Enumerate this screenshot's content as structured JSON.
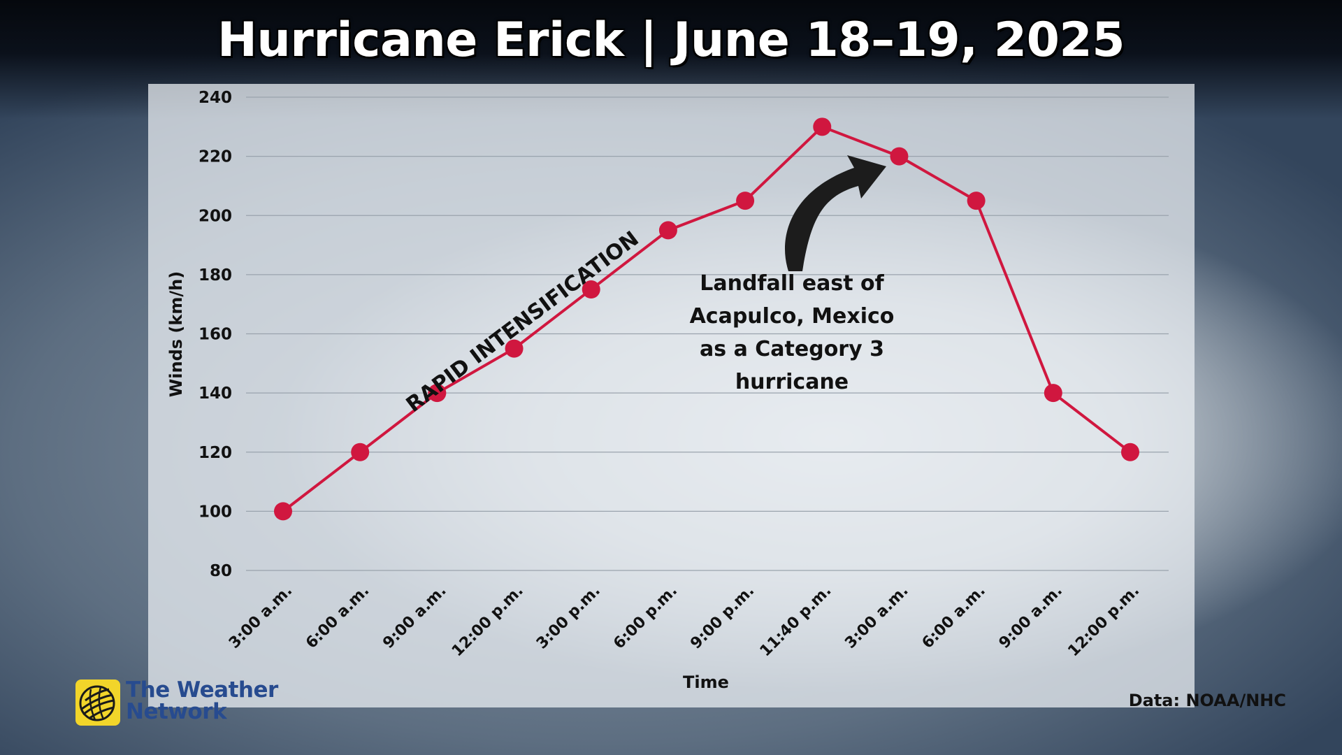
{
  "title": "Hurricane Erick | June 18–19, 2025",
  "colors": {
    "line": "#d0173f",
    "text": "#111111",
    "logo_yellow": "#f2d52a",
    "logo_blue": "#274b8f"
  },
  "annotation": "Landfall east of Acapulco, Mexico as a Category 3 hurricane",
  "annotation_lines": [
    "Landfall east of",
    "Acapulco, Mexico",
    "as a Category 3",
    "hurricane"
  ],
  "rapid_label": "RAPID INTENSIFICATION",
  "source": "Data: NOAA/NHC",
  "logo": {
    "line1": "The Weather",
    "line2": "Network",
    "icon": "globe-icon"
  },
  "chart_data": {
    "type": "line",
    "xlabel": "Time",
    "ylabel": "Winds (km/h)",
    "ylim": [
      80,
      240
    ],
    "yticks": [
      80,
      100,
      120,
      140,
      160,
      180,
      200,
      220,
      240
    ],
    "grid": true,
    "categories": [
      "3:00 a.m.",
      "6:00 a.m.",
      "9:00 a.m.",
      "12:00 p.m.",
      "3:00 p.m.",
      "6:00 p.m.",
      "9:00 p.m.",
      "11:40 p.m.",
      "3:00 a.m.",
      "6:00 a.m.",
      "9:00 a.m.",
      "12:00 p.m."
    ],
    "series": [
      {
        "values": [
          100,
          120,
          140,
          155,
          175,
          195,
          205,
          230,
          220,
          205,
          140,
          120
        ]
      }
    ]
  }
}
